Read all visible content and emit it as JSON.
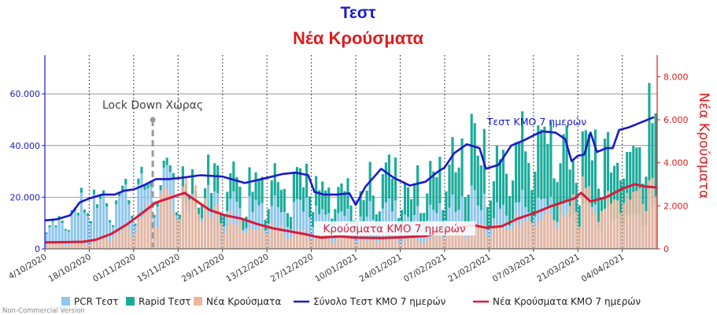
{
  "chart_data": {
    "type": "bar",
    "title": "Τεστ",
    "subtitle": "Νέα Κρούσματα",
    "y_left": {
      "min": 0,
      "max": 75000,
      "ticks": [
        0,
        20000,
        40000,
        60000
      ],
      "tick_labels": [
        "0",
        "20.000",
        "40.000",
        "60.000"
      ],
      "color": "#1a1acc"
    },
    "y_right": {
      "min": 0,
      "max": 9000,
      "ticks": [
        0,
        2000,
        4000,
        6000,
        8000
      ],
      "tick_labels": [
        "0",
        "2.000",
        "4.000",
        "6.000",
        "8.000"
      ],
      "label": "Νέα Κρούσματα",
      "color": "#e01b1b"
    },
    "x_dates": [
      "04/10/2020",
      "18/10/2020",
      "01/11/2020",
      "15/11/2020",
      "29/11/2020",
      "13/12/2020",
      "27/12/2020",
      "10/01/2021",
      "24/01/2021",
      "07/02/2021",
      "21/02/2021",
      "07/03/2021",
      "21/03/2021",
      "04/04/2021"
    ],
    "x_tick_labels": [
      "4/10/2020",
      "18/10/2020",
      "01/11/2020",
      "15/11/2020",
      "29/11/2020",
      "13/12/2020",
      "27/12/2020",
      "10/01/2021",
      "24/01/2021",
      "07/02/2021",
      "21/02/2021",
      "07/03/2021",
      "21/03/2021",
      "04/04/2021"
    ],
    "x_start": "04/10/2020",
    "x_end": "15/04/2021",
    "grid": true,
    "legend_position": "bottom",
    "series": [
      {
        "name": "PCR Τεστ",
        "type": "bar",
        "axis": "left",
        "color": "#8ec6ec"
      },
      {
        "name": "Rapid Τεστ",
        "type": "bar",
        "axis": "left",
        "color": "#1aab9b"
      },
      {
        "name": "Νέα Κρούσματα",
        "type": "bar",
        "axis": "right",
        "color": "#eeb59c"
      },
      {
        "name": "Σύνολο Τεστ ΚΜΟ 7 ημερών",
        "type": "line",
        "axis": "left",
        "color": "#1919c8",
        "points": [
          [
            "04/10/2020",
            11000
          ],
          [
            "08/10/2020",
            11500
          ],
          [
            "12/10/2020",
            13000
          ],
          [
            "15/10/2020",
            18000
          ],
          [
            "18/10/2020",
            19500
          ],
          [
            "22/10/2020",
            21000
          ],
          [
            "26/10/2020",
            21000
          ],
          [
            "29/10/2020",
            22500
          ],
          [
            "01/11/2020",
            23000
          ],
          [
            "04/11/2020",
            24500
          ],
          [
            "08/11/2020",
            27000
          ],
          [
            "12/11/2020",
            27000
          ],
          [
            "16/11/2020",
            27500
          ],
          [
            "22/11/2020",
            28500
          ],
          [
            "29/11/2020",
            28000
          ],
          [
            "06/12/2020",
            25500
          ],
          [
            "13/12/2020",
            27500
          ],
          [
            "18/12/2020",
            29000
          ],
          [
            "22/12/2020",
            29500
          ],
          [
            "26/12/2020",
            28500
          ],
          [
            "28/12/2020",
            22000
          ],
          [
            "31/12/2020",
            21000
          ],
          [
            "04/01/2021",
            21000
          ],
          [
            "08/01/2021",
            21500
          ],
          [
            "10/01/2021",
            17000
          ],
          [
            "13/01/2021",
            24000
          ],
          [
            "18/01/2021",
            31000
          ],
          [
            "22/01/2021",
            27500
          ],
          [
            "27/01/2021",
            24500
          ],
          [
            "01/02/2021",
            26000
          ],
          [
            "05/02/2021",
            30000
          ],
          [
            "07/02/2021",
            31500
          ],
          [
            "10/02/2021",
            37000
          ],
          [
            "14/02/2021",
            40500
          ],
          [
            "18/02/2021",
            39000
          ],
          [
            "20/02/2021",
            31000
          ],
          [
            "24/02/2021",
            32500
          ],
          [
            "28/02/2021",
            40000
          ],
          [
            "04/03/2021",
            42000
          ],
          [
            "08/03/2021",
            44500
          ],
          [
            "10/03/2021",
            45500
          ],
          [
            "14/03/2021",
            45000
          ],
          [
            "17/03/2021",
            42500
          ],
          [
            "19/03/2021",
            34000
          ],
          [
            "21/03/2021",
            36000
          ],
          [
            "23/03/2021",
            36500
          ],
          [
            "25/03/2021",
            45000
          ],
          [
            "27/03/2021",
            37500
          ],
          [
            "30/03/2021",
            39000
          ],
          [
            "01/04/2021",
            39000
          ],
          [
            "03/04/2021",
            46000
          ],
          [
            "06/04/2021",
            47000
          ],
          [
            "10/04/2021",
            49000
          ],
          [
            "14/04/2021",
            51000
          ]
        ]
      },
      {
        "name": "Νέα Κρούσματα ΚΜΟ 7 ημερών",
        "type": "line",
        "axis": "right",
        "color": "#d81b3c",
        "points": [
          [
            "04/10/2020",
            300
          ],
          [
            "10/10/2020",
            310
          ],
          [
            "16/10/2020",
            330
          ],
          [
            "20/10/2020",
            420
          ],
          [
            "25/10/2020",
            700
          ],
          [
            "30/10/2020",
            1150
          ],
          [
            "04/11/2020",
            1700
          ],
          [
            "08/11/2020",
            2150
          ],
          [
            "12/11/2020",
            2350
          ],
          [
            "17/11/2020",
            2600
          ],
          [
            "20/11/2020",
            2300
          ],
          [
            "25/11/2020",
            1800
          ],
          [
            "30/11/2020",
            1550
          ],
          [
            "05/12/2020",
            1400
          ],
          [
            "10/12/2020",
            1150
          ],
          [
            "15/12/2020",
            950
          ],
          [
            "20/12/2020",
            820
          ],
          [
            "25/12/2020",
            680
          ],
          [
            "30/12/2020",
            520
          ],
          [
            "05/01/2021",
            580
          ],
          [
            "10/01/2021",
            520
          ],
          [
            "18/01/2021",
            500
          ],
          [
            "25/01/2021",
            540
          ],
          [
            "01/02/2021",
            600
          ],
          [
            "07/02/2021",
            800
          ],
          [
            "12/02/2021",
            1000
          ],
          [
            "16/02/2021",
            1100
          ],
          [
            "20/02/2021",
            980
          ],
          [
            "25/02/2021",
            1050
          ],
          [
            "02/03/2021",
            1400
          ],
          [
            "08/03/2021",
            1700
          ],
          [
            "12/03/2021",
            1950
          ],
          [
            "16/03/2021",
            2150
          ],
          [
            "20/03/2021",
            2350
          ],
          [
            "22/03/2021",
            2600
          ],
          [
            "25/03/2021",
            2200
          ],
          [
            "30/03/2021",
            2400
          ],
          [
            "04/04/2021",
            2800
          ],
          [
            "08/04/2021",
            3000
          ],
          [
            "11/04/2021",
            2900
          ],
          [
            "15/04/2021",
            2850
          ]
        ]
      }
    ],
    "annotations": [
      {
        "text": "Lock Down Χώρας",
        "date": "07/11/2020",
        "value": 50000,
        "axis": "left"
      },
      {
        "text": "Τεστ ΚΜΟ 7 ημερών",
        "color": "#1919c8"
      },
      {
        "text": "Κρούσματα ΚΜΟ 7 ημερών",
        "color": "#d81b3c"
      }
    ]
  },
  "footer": {
    "credit": "Non-Commercial Version"
  }
}
